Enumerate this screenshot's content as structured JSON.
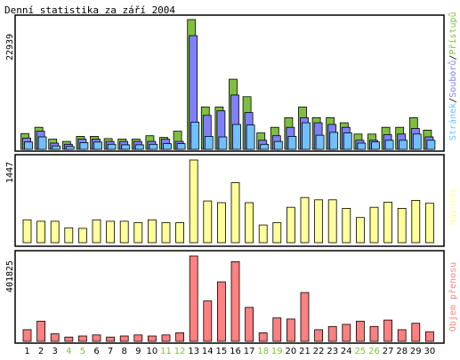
{
  "title": "Denní statistika za září 2004",
  "colors": {
    "frame": "#000000",
    "hits": "#7fbf3f",
    "files": "#8080ff",
    "pages": "#70c0ff",
    "visits": "#ffff99",
    "kbytes": "#ff8080",
    "weekend_label": "#7fbf3f",
    "weekday_label": "#000000"
  },
  "chart_data": [
    {
      "type": "bar",
      "panel": "top",
      "ymax_label": "22939",
      "ylim": [
        0,
        22939
      ],
      "legend": {
        "pages_label": "Stránek",
        "files_label": "Souborů",
        "hits_label": "Přístupů",
        "separator": "/"
      },
      "categories": [
        "1",
        "2",
        "3",
        "4",
        "5",
        "6",
        "7",
        "8",
        "9",
        "10",
        "11",
        "12",
        "13",
        "14",
        "15",
        "16",
        "17",
        "18",
        "19",
        "20",
        "21",
        "22",
        "23",
        "24",
        "25",
        "26",
        "27",
        "28",
        "29",
        "30"
      ],
      "weekend_days": [
        "4",
        "5",
        "11",
        "12",
        "18",
        "19",
        "25",
        "26"
      ],
      "series": [
        {
          "name": "Přístupů",
          "color_key": "hits",
          "values": [
            2800,
            3900,
            1800,
            1400,
            2300,
            2300,
            1900,
            1800,
            1800,
            2400,
            2100,
            3200,
            22939,
            7500,
            7500,
            12400,
            9300,
            2900,
            3900,
            5600,
            7500,
            5600,
            5600,
            4700,
            2700,
            2700,
            3900,
            3900,
            5600,
            3400
          ]
        },
        {
          "name": "Souborů",
          "color_key": "files",
          "values": [
            2000,
            3200,
            1100,
            900,
            1800,
            1800,
            1400,
            1400,
            1400,
            1400,
            1800,
            1400,
            20100,
            6000,
            6800,
            9600,
            6500,
            1600,
            2400,
            3900,
            5600,
            4700,
            4400,
            3900,
            1600,
            1600,
            2600,
            2700,
            3700,
            2200
          ]
        },
        {
          "name": "Stránek",
          "color_key": "pages",
          "values": [
            1300,
            2200,
            600,
            500,
            1200,
            1300,
            900,
            800,
            800,
            900,
            1000,
            1000,
            4800,
            2300,
            2200,
            4400,
            4300,
            900,
            1400,
            2300,
            4700,
            2500,
            3000,
            2900,
            1100,
            1300,
            1600,
            1600,
            2700,
            1600
          ]
        }
      ]
    },
    {
      "type": "bar",
      "panel": "middle",
      "ymax_label": "1447",
      "ylim": [
        0,
        1447
      ],
      "legend_label": "Návštěv",
      "categories": [
        "1",
        "2",
        "3",
        "4",
        "5",
        "6",
        "7",
        "8",
        "9",
        "10",
        "11",
        "12",
        "13",
        "14",
        "15",
        "16",
        "17",
        "18",
        "19",
        "20",
        "21",
        "22",
        "23",
        "24",
        "25",
        "26",
        "27",
        "28",
        "29",
        "30"
      ],
      "series": [
        {
          "name": "Návštěv",
          "color_key": "visits",
          "values": [
            400,
            375,
            375,
            260,
            250,
            400,
            375,
            375,
            350,
            400,
            350,
            350,
            1447,
            730,
            700,
            1050,
            700,
            310,
            350,
            620,
            790,
            750,
            750,
            600,
            440,
            620,
            710,
            600,
            740,
            690
          ]
        }
      ]
    },
    {
      "type": "bar",
      "panel": "bottom",
      "ymax_label": "401825",
      "ylim": [
        0,
        401825
      ],
      "legend_label": "Objem přenosu",
      "categories": [
        "1",
        "2",
        "3",
        "4",
        "5",
        "6",
        "7",
        "8",
        "9",
        "10",
        "11",
        "12",
        "13",
        "14",
        "15",
        "16",
        "17",
        "18",
        "19",
        "20",
        "21",
        "22",
        "23",
        "24",
        "25",
        "26",
        "27",
        "28",
        "29",
        "30"
      ],
      "series": [
        {
          "name": "Objem přenosu",
          "color_key": "kbytes",
          "values": [
            55000,
            95000,
            35000,
            20000,
            25000,
            30000,
            20000,
            25000,
            30000,
            25000,
            30000,
            40000,
            401825,
            190000,
            280000,
            375000,
            160000,
            40000,
            110000,
            105000,
            230000,
            55000,
            70000,
            80000,
            95000,
            70000,
            100000,
            55000,
            85000,
            45000
          ]
        }
      ]
    }
  ]
}
